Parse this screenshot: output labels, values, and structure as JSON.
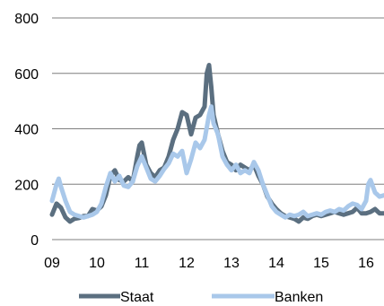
{
  "chart_data": {
    "type": "line",
    "xlabel": "",
    "ylabel": "",
    "ylim": [
      0,
      800
    ],
    "y_ticks": [
      0,
      200,
      400,
      600,
      800
    ],
    "x_ticks": [
      "09",
      "10",
      "11",
      "12",
      "13",
      "14",
      "15",
      "16"
    ],
    "x_tick_values": [
      2009,
      2010,
      2011,
      2012,
      2013,
      2014,
      2015,
      2016
    ],
    "xlim": [
      2009,
      2016.4
    ],
    "grid": "horizontal",
    "legend_position": "bottom",
    "series": [
      {
        "name": "Staat",
        "color": "#5b6f80",
        "points": [
          [
            2009.0,
            90
          ],
          [
            2009.1,
            130
          ],
          [
            2009.2,
            115
          ],
          [
            2009.3,
            80
          ],
          [
            2009.4,
            65
          ],
          [
            2009.5,
            75
          ],
          [
            2009.6,
            78
          ],
          [
            2009.7,
            85
          ],
          [
            2009.8,
            85
          ],
          [
            2009.9,
            110
          ],
          [
            2010.0,
            105
          ],
          [
            2010.1,
            120
          ],
          [
            2010.2,
            160
          ],
          [
            2010.3,
            230
          ],
          [
            2010.4,
            250
          ],
          [
            2010.5,
            215
          ],
          [
            2010.6,
            210
          ],
          [
            2010.7,
            225
          ],
          [
            2010.8,
            210
          ],
          [
            2010.9,
            300
          ],
          [
            2010.95,
            340
          ],
          [
            2011.0,
            350
          ],
          [
            2011.1,
            270
          ],
          [
            2011.2,
            240
          ],
          [
            2011.3,
            225
          ],
          [
            2011.4,
            250
          ],
          [
            2011.5,
            260
          ],
          [
            2011.6,
            300
          ],
          [
            2011.7,
            360
          ],
          [
            2011.8,
            400
          ],
          [
            2011.9,
            460
          ],
          [
            2012.0,
            450
          ],
          [
            2012.1,
            380
          ],
          [
            2012.2,
            440
          ],
          [
            2012.3,
            450
          ],
          [
            2012.4,
            480
          ],
          [
            2012.45,
            600
          ],
          [
            2012.5,
            630
          ],
          [
            2012.55,
            550
          ],
          [
            2012.6,
            450
          ],
          [
            2012.7,
            380
          ],
          [
            2012.8,
            320
          ],
          [
            2012.9,
            280
          ],
          [
            2013.0,
            270
          ],
          [
            2013.1,
            250
          ],
          [
            2013.2,
            270
          ],
          [
            2013.3,
            260
          ],
          [
            2013.4,
            250
          ],
          [
            2013.5,
            270
          ],
          [
            2013.6,
            230
          ],
          [
            2013.7,
            200
          ],
          [
            2013.8,
            155
          ],
          [
            2013.9,
            130
          ],
          [
            2014.0,
            110
          ],
          [
            2014.1,
            95
          ],
          [
            2014.2,
            85
          ],
          [
            2014.3,
            80
          ],
          [
            2014.4,
            75
          ],
          [
            2014.5,
            65
          ],
          [
            2014.6,
            80
          ],
          [
            2014.7,
            75
          ],
          [
            2014.8,
            85
          ],
          [
            2014.9,
            90
          ],
          [
            2015.0,
            85
          ],
          [
            2015.1,
            90
          ],
          [
            2015.2,
            95
          ],
          [
            2015.3,
            100
          ],
          [
            2015.4,
            95
          ],
          [
            2015.5,
            90
          ],
          [
            2015.6,
            95
          ],
          [
            2015.7,
            100
          ],
          [
            2015.8,
            115
          ],
          [
            2015.9,
            95
          ],
          [
            2016.0,
            95
          ],
          [
            2016.1,
            100
          ],
          [
            2016.2,
            110
          ],
          [
            2016.3,
            95
          ],
          [
            2016.4,
            95
          ]
        ]
      },
      {
        "name": "Banken",
        "color": "#a9c8ea",
        "points": [
          [
            2009.0,
            140
          ],
          [
            2009.1,
            200
          ],
          [
            2009.15,
            220
          ],
          [
            2009.2,
            190
          ],
          [
            2009.3,
            140
          ],
          [
            2009.4,
            100
          ],
          [
            2009.5,
            90
          ],
          [
            2009.6,
            85
          ],
          [
            2009.7,
            80
          ],
          [
            2009.8,
            85
          ],
          [
            2009.9,
            90
          ],
          [
            2010.0,
            100
          ],
          [
            2010.1,
            130
          ],
          [
            2010.2,
            190
          ],
          [
            2010.3,
            240
          ],
          [
            2010.4,
            210
          ],
          [
            2010.5,
            230
          ],
          [
            2010.6,
            195
          ],
          [
            2010.7,
            190
          ],
          [
            2010.8,
            210
          ],
          [
            2010.9,
            265
          ],
          [
            2011.0,
            300
          ],
          [
            2011.1,
            260
          ],
          [
            2011.2,
            220
          ],
          [
            2011.3,
            210
          ],
          [
            2011.4,
            230
          ],
          [
            2011.5,
            255
          ],
          [
            2011.6,
            275
          ],
          [
            2011.7,
            310
          ],
          [
            2011.8,
            300
          ],
          [
            2011.9,
            320
          ],
          [
            2012.0,
            240
          ],
          [
            2012.1,
            290
          ],
          [
            2012.2,
            350
          ],
          [
            2012.3,
            330
          ],
          [
            2012.4,
            360
          ],
          [
            2012.5,
            450
          ],
          [
            2012.55,
            480
          ],
          [
            2012.6,
            420
          ],
          [
            2012.7,
            380
          ],
          [
            2012.8,
            300
          ],
          [
            2012.9,
            270
          ],
          [
            2013.0,
            250
          ],
          [
            2013.1,
            270
          ],
          [
            2013.2,
            240
          ],
          [
            2013.3,
            250
          ],
          [
            2013.4,
            240
          ],
          [
            2013.5,
            280
          ],
          [
            2013.6,
            250
          ],
          [
            2013.7,
            200
          ],
          [
            2013.8,
            160
          ],
          [
            2013.9,
            120
          ],
          [
            2014.0,
            100
          ],
          [
            2014.1,
            90
          ],
          [
            2014.2,
            80
          ],
          [
            2014.3,
            90
          ],
          [
            2014.4,
            85
          ],
          [
            2014.5,
            90
          ],
          [
            2014.6,
            100
          ],
          [
            2014.7,
            85
          ],
          [
            2014.8,
            90
          ],
          [
            2014.9,
            95
          ],
          [
            2015.0,
            90
          ],
          [
            2015.1,
            100
          ],
          [
            2015.2,
            105
          ],
          [
            2015.3,
            100
          ],
          [
            2015.4,
            110
          ],
          [
            2015.5,
            105
          ],
          [
            2015.6,
            120
          ],
          [
            2015.7,
            130
          ],
          [
            2015.8,
            125
          ],
          [
            2015.9,
            110
          ],
          [
            2016.0,
            140
          ],
          [
            2016.05,
            200
          ],
          [
            2016.1,
            215
          ],
          [
            2016.2,
            170
          ],
          [
            2016.3,
            155
          ],
          [
            2016.4,
            160
          ]
        ]
      }
    ]
  }
}
